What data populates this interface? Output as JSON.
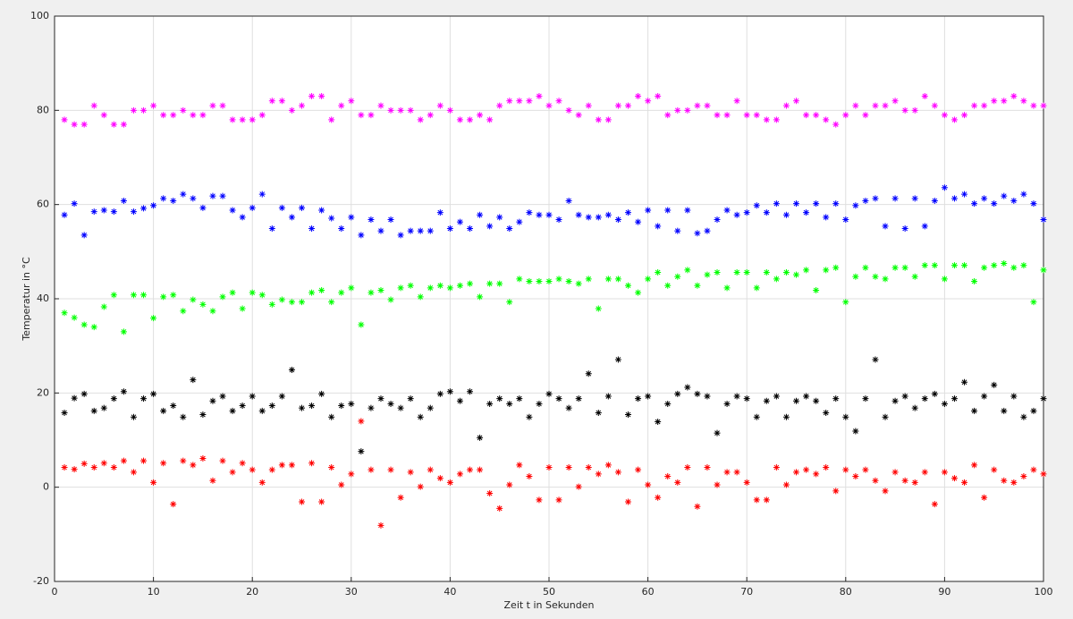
{
  "chart_data": {
    "type": "scatter",
    "xlabel": "Zeit t in Sekunden",
    "ylabel": "Temperatur in °C",
    "xlim": [
      0,
      100
    ],
    "ylim": [
      -20,
      100
    ],
    "xticks": [
      0,
      10,
      20,
      30,
      40,
      50,
      60,
      70,
      80,
      90,
      100
    ],
    "yticks": [
      -20,
      0,
      20,
      40,
      60,
      80,
      100
    ],
    "grid": true,
    "marker": "*",
    "x": [
      1,
      2,
      3,
      4,
      5,
      6,
      7,
      8,
      9,
      10,
      11,
      12,
      13,
      14,
      15,
      16,
      17,
      18,
      19,
      20,
      21,
      22,
      23,
      24,
      25,
      26,
      27,
      28,
      29,
      30,
      31,
      32,
      33,
      34,
      35,
      36,
      37,
      38,
      39,
      40,
      41,
      42,
      43,
      44,
      45,
      46,
      47,
      48,
      49,
      50,
      51,
      52,
      53,
      54,
      55,
      56,
      57,
      58,
      59,
      60,
      61,
      62,
      63,
      64,
      65,
      66,
      67,
      68,
      69,
      70,
      71,
      72,
      73,
      74,
      75,
      76,
      77,
      78,
      79,
      80,
      81,
      82,
      83,
      84,
      85,
      86,
      87,
      88,
      89,
      90,
      91,
      92,
      93,
      94,
      95,
      96,
      97,
      98,
      99,
      100
    ],
    "series": [
      {
        "color": "#ff00ff",
        "values": [
          78,
          77,
          77,
          81,
          79,
          77,
          77,
          80,
          80,
          81,
          79,
          79,
          80,
          79,
          79,
          81,
          81,
          78,
          78,
          78,
          79,
          82,
          82,
          80,
          81,
          83,
          83,
          78,
          81,
          82,
          79,
          79,
          81,
          80,
          80,
          80,
          78,
          79,
          81,
          80,
          78,
          78,
          79,
          78,
          81,
          82,
          82,
          82,
          83,
          81,
          82,
          80,
          79,
          81,
          78,
          78,
          81,
          81,
          83,
          82,
          83,
          79,
          80,
          80,
          81,
          81,
          79,
          79,
          82,
          79,
          79,
          78,
          78,
          81,
          82,
          79,
          79,
          78,
          77,
          79,
          81,
          79,
          81,
          81,
          82,
          80,
          80,
          83,
          81,
          79,
          78,
          79,
          81,
          81,
          82,
          82,
          83,
          82,
          81,
          81
        ]
      },
      {
        "color": "#0000ff",
        "values": [
          57.8,
          60.2,
          53.5,
          58.5,
          58.8,
          58.5,
          60.8,
          58.5,
          59.2,
          59.8,
          61.3,
          60.8,
          62.2,
          61.3,
          59.3,
          61.8,
          61.8,
          58.8,
          57.3,
          59.3,
          62.2,
          54.9,
          59.3,
          57.3,
          59.3,
          54.9,
          58.8,
          57.1,
          54.9,
          57.3,
          53.5,
          56.8,
          54.4,
          56.8,
          53.5,
          54.4,
          54.4,
          54.4,
          58.3,
          54.9,
          56.3,
          54.9,
          57.8,
          55.4,
          57.3,
          54.9,
          56.3,
          58.3,
          57.8,
          57.8,
          56.8,
          60.8,
          57.8,
          57.3,
          57.3,
          57.8,
          56.8,
          58.3,
          56.3,
          58.8,
          55.4,
          58.8,
          54.4,
          58.8,
          53.9,
          54.4,
          56.8,
          58.8,
          57.8,
          58.3,
          59.8,
          58.3,
          60.2,
          57.8,
          60.2,
          58.3,
          60.2,
          57.3,
          60.2,
          56.8,
          59.8,
          60.8,
          61.3,
          55.4,
          61.3,
          54.9,
          61.3,
          55.4,
          60.8,
          63.6,
          61.3,
          62.2,
          60.2,
          61.3,
          60.2,
          61.8,
          60.8,
          62.2,
          60.2,
          56.8
        ]
      },
      {
        "color": "#00ff00",
        "values": [
          37,
          36,
          34.5,
          34,
          38.3,
          40.8,
          33,
          40.8,
          40.8,
          35.9,
          40.4,
          40.8,
          37.4,
          39.8,
          38.8,
          37.4,
          40.4,
          41.3,
          37.9,
          41.3,
          40.8,
          38.8,
          39.8,
          39.3,
          39.3,
          41.3,
          41.8,
          39.3,
          41.3,
          42.3,
          34.5,
          41.3,
          41.8,
          39.8,
          42.3,
          42.8,
          40.4,
          42.3,
          42.8,
          42.3,
          42.8,
          43.2,
          40.4,
          43.2,
          43.2,
          39.3,
          44.2,
          43.7,
          43.7,
          43.7,
          44.2,
          43.7,
          43.2,
          44.2,
          37.9,
          44.2,
          44.2,
          42.8,
          41.3,
          44.2,
          45.6,
          42.8,
          44.7,
          46.1,
          42.8,
          45.1,
          45.6,
          42.3,
          45.6,
          45.6,
          42.3,
          45.6,
          44.2,
          45.6,
          45.1,
          46.1,
          41.8,
          46.1,
          46.6,
          39.3,
          44.7,
          46.6,
          44.7,
          44.2,
          46.6,
          46.6,
          44.7,
          47.1,
          47.1,
          44.2,
          47.1,
          47.1,
          43.7,
          46.6,
          47.1,
          47.5,
          46.6,
          47.1,
          39.3,
          46.1
        ]
      },
      {
        "color": "#000000",
        "values": [
          15.8,
          18.9,
          19.8,
          16.2,
          16.8,
          18.8,
          20.3,
          14.9,
          18.8,
          19.8,
          16.2,
          17.3,
          14.9,
          22.8,
          15.4,
          18.3,
          19.3,
          16.2,
          17.3,
          19.3,
          16.2,
          17.3,
          19.3,
          24.9,
          16.8,
          17.3,
          19.8,
          14.9,
          17.3,
          17.7,
          7.6,
          16.8,
          18.8,
          17.7,
          16.8,
          18.8,
          14.9,
          16.8,
          19.8,
          20.3,
          18.3,
          20.3,
          10.5,
          17.7,
          18.8,
          17.7,
          18.8,
          14.9,
          17.7,
          19.8,
          18.8,
          16.8,
          18.8,
          24.1,
          15.8,
          19.3,
          27.1,
          15.4,
          18.8,
          19.3,
          13.9,
          17.7,
          19.8,
          21.2,
          19.8,
          19.3,
          11.5,
          17.7,
          19.3,
          18.8,
          14.9,
          18.3,
          19.3,
          14.9,
          18.3,
          19.3,
          18.3,
          15.8,
          18.8,
          14.9,
          11.9,
          18.8,
          27.1,
          14.9,
          18.3,
          19.3,
          16.8,
          18.8,
          19.8,
          17.7,
          18.8,
          22.3,
          16.2,
          19.3,
          21.7,
          16.2,
          19.3,
          14.9,
          16.2,
          18.8
        ]
      },
      {
        "color": "#ff0000",
        "values": [
          4.2,
          3.8,
          5,
          4.2,
          5.1,
          4.2,
          5.6,
          3.2,
          5.6,
          1,
          5.1,
          -3.6,
          5.6,
          4.7,
          6.1,
          1.4,
          5.6,
          3.2,
          5.1,
          3.7,
          1,
          3.7,
          4.7,
          4.7,
          -3.1,
          5.1,
          -3.1,
          4.2,
          0.5,
          2.8,
          14,
          3.7,
          -8.1,
          3.7,
          -2.2,
          3.2,
          0.1,
          3.7,
          1.9,
          1,
          2.8,
          3.7,
          3.7,
          -1.3,
          -4.5,
          0.5,
          4.7,
          2.3,
          -2.7,
          4.2,
          -2.7,
          4.2,
          0.1,
          4.2,
          2.8,
          4.7,
          3.2,
          -3.1,
          3.7,
          0.5,
          -2.2,
          2.3,
          1,
          4.2,
          -4.1,
          4.2,
          0.5,
          3.2,
          3.2,
          1,
          -2.7,
          -2.7,
          4.2,
          0.5,
          3.2,
          3.7,
          2.8,
          4.2,
          -0.8,
          3.7,
          2.3,
          3.7,
          1.4,
          -0.8,
          3.2,
          1.4,
          1,
          3.2,
          -3.6,
          3.2,
          1.9,
          1,
          4.7,
          -2.2,
          3.7,
          1.4,
          1,
          2.3,
          3.7,
          2.8
        ]
      }
    ]
  }
}
